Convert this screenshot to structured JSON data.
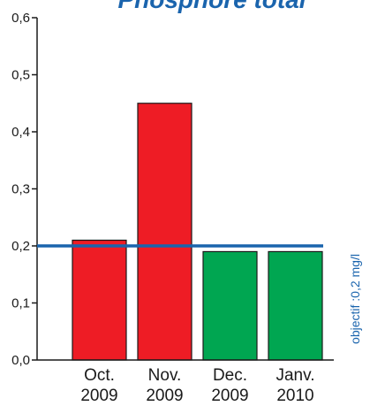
{
  "chart_data": {
    "type": "bar",
    "title": "Phosphore total",
    "categories": [
      [
        "Oct.",
        "2009"
      ],
      [
        "Nov.",
        "2009"
      ],
      [
        "Dec.",
        "2009"
      ],
      [
        "Janv.",
        "2010"
      ]
    ],
    "values": [
      0.21,
      0.45,
      0.19,
      0.19
    ],
    "bar_colors": [
      "#ee1c25",
      "#ee1c25",
      "#00a651",
      "#00a651"
    ],
    "ylim": [
      0,
      0.6
    ],
    "yticks": [
      0.0,
      0.1,
      0.2,
      0.3,
      0.4,
      0.5,
      0.6
    ],
    "ytick_labels": [
      "0,0",
      "0,1",
      "0,2",
      "0,3",
      "0,4",
      "0,5",
      "0,6"
    ],
    "xlabel": "",
    "ylabel": "",
    "grid": false,
    "target": {
      "value": 0.2,
      "label": "objectif :0,2 mg/l",
      "color": "#1a64ad"
    },
    "title_color": "#1a64ad"
  }
}
